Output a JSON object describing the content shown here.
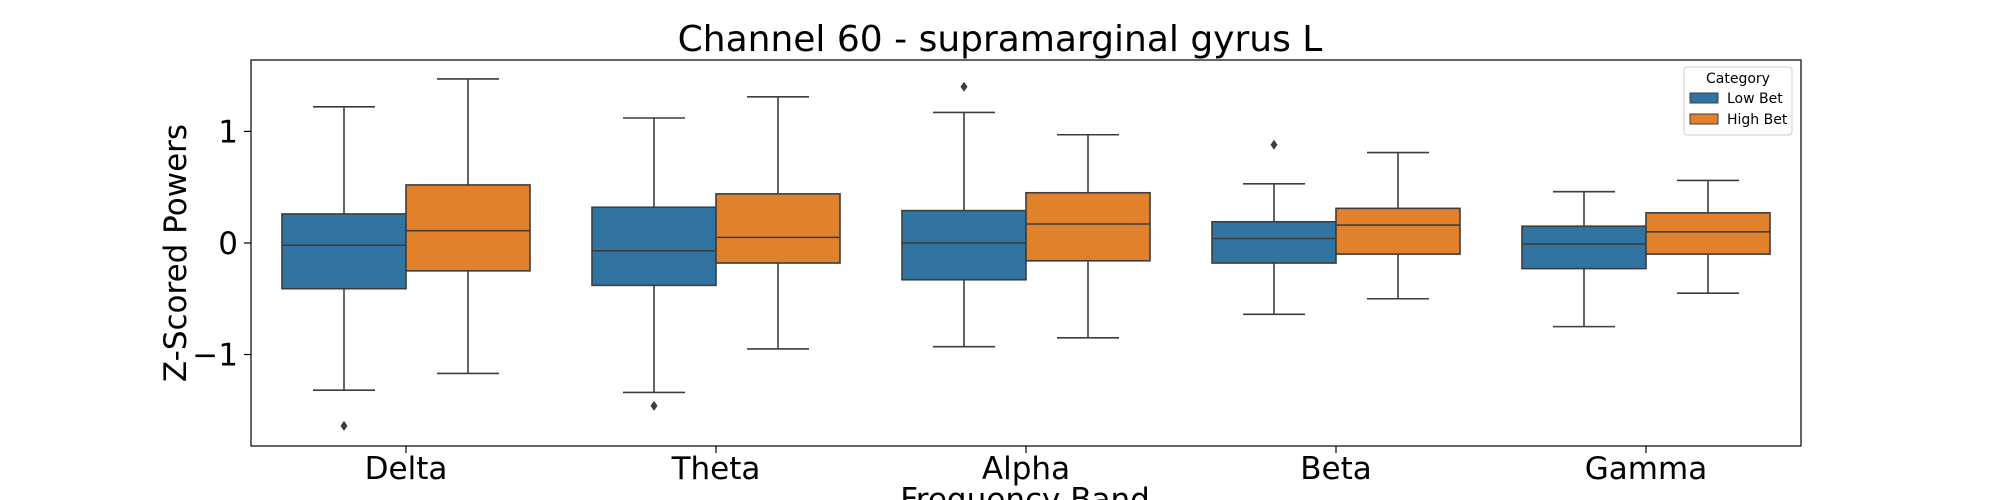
{
  "chart_data": {
    "type": "box",
    "title": "Channel 60 - supramarginal gyrus L",
    "xlabel": "Frequency Band",
    "ylabel": "Z-Scored Powers",
    "categories": [
      "Delta",
      "Theta",
      "Alpha",
      "Beta",
      "Gamma"
    ],
    "ylim": [
      -1.82,
      1.64
    ],
    "yticks": [
      {
        "value": 1,
        "label": "1"
      },
      {
        "value": 0,
        "label": "0"
      },
      {
        "value": -1,
        "label": "−1"
      }
    ],
    "grid": false,
    "legend": {
      "title": "Category",
      "position": "top-right"
    },
    "series": [
      {
        "name": "Low Bet",
        "color": "#3274a1",
        "boxes": [
          {
            "whisker_low": -1.32,
            "q1": -0.41,
            "median": -0.02,
            "q3": 0.26,
            "whisker_high": 1.22,
            "outliers": [
              -1.64
            ]
          },
          {
            "whisker_low": -1.34,
            "q1": -0.38,
            "median": -0.07,
            "q3": 0.32,
            "whisker_high": 1.12,
            "outliers": [
              -1.46
            ]
          },
          {
            "whisker_low": -0.93,
            "q1": -0.33,
            "median": 0.0,
            "q3": 0.29,
            "whisker_high": 1.17,
            "outliers": [
              1.4
            ]
          },
          {
            "whisker_low": -0.64,
            "q1": -0.18,
            "median": 0.04,
            "q3": 0.19,
            "whisker_high": 0.53,
            "outliers": [
              0.88
            ]
          },
          {
            "whisker_low": -0.75,
            "q1": -0.23,
            "median": -0.01,
            "q3": 0.15,
            "whisker_high": 0.46,
            "outliers": []
          }
        ]
      },
      {
        "name": "High Bet",
        "color": "#e1812c",
        "boxes": [
          {
            "whisker_low": -1.17,
            "q1": -0.25,
            "median": 0.11,
            "q3": 0.52,
            "whisker_high": 1.47,
            "outliers": []
          },
          {
            "whisker_low": -0.95,
            "q1": -0.18,
            "median": 0.05,
            "q3": 0.44,
            "whisker_high": 1.31,
            "outliers": []
          },
          {
            "whisker_low": -0.85,
            "q1": -0.16,
            "median": 0.17,
            "q3": 0.45,
            "whisker_high": 0.97,
            "outliers": []
          },
          {
            "whisker_low": -0.5,
            "q1": -0.1,
            "median": 0.16,
            "q3": 0.31,
            "whisker_high": 0.81,
            "outliers": []
          },
          {
            "whisker_low": -0.45,
            "q1": -0.1,
            "median": 0.1,
            "q3": 0.27,
            "whisker_high": 0.56,
            "outliers": []
          }
        ]
      }
    ]
  }
}
